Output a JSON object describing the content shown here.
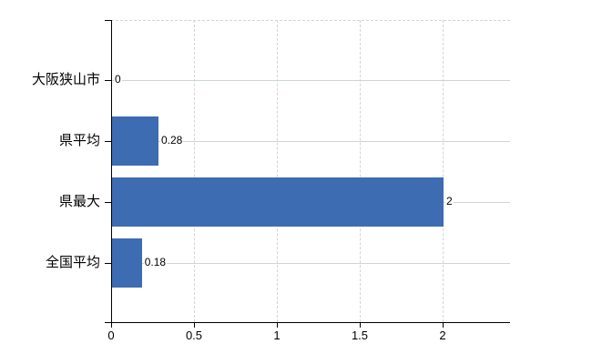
{
  "chart_data": {
    "type": "bar",
    "orientation": "horizontal",
    "title": "",
    "categories": [
      "大阪狭山市",
      "県平均",
      "県最大",
      "全国平均"
    ],
    "values": [
      0,
      0.28,
      2,
      0.18
    ],
    "value_labels": [
      "0",
      "0.28",
      "2",
      "0.18"
    ],
    "x_ticks": [
      0,
      0.5,
      1,
      1.5,
      2
    ],
    "x_tick_labels": [
      "0",
      "0.5",
      "1",
      "1.5",
      "2"
    ],
    "xlim": [
      0,
      2.4
    ],
    "grid": true,
    "legend": false,
    "bar_color": "#3d6cb2",
    "axis_color": "#000000",
    "grid_color_vertical": "#d8d2d8",
    "grid_color_horizontal": "#cdd7cd",
    "label_color": "#000000"
  }
}
